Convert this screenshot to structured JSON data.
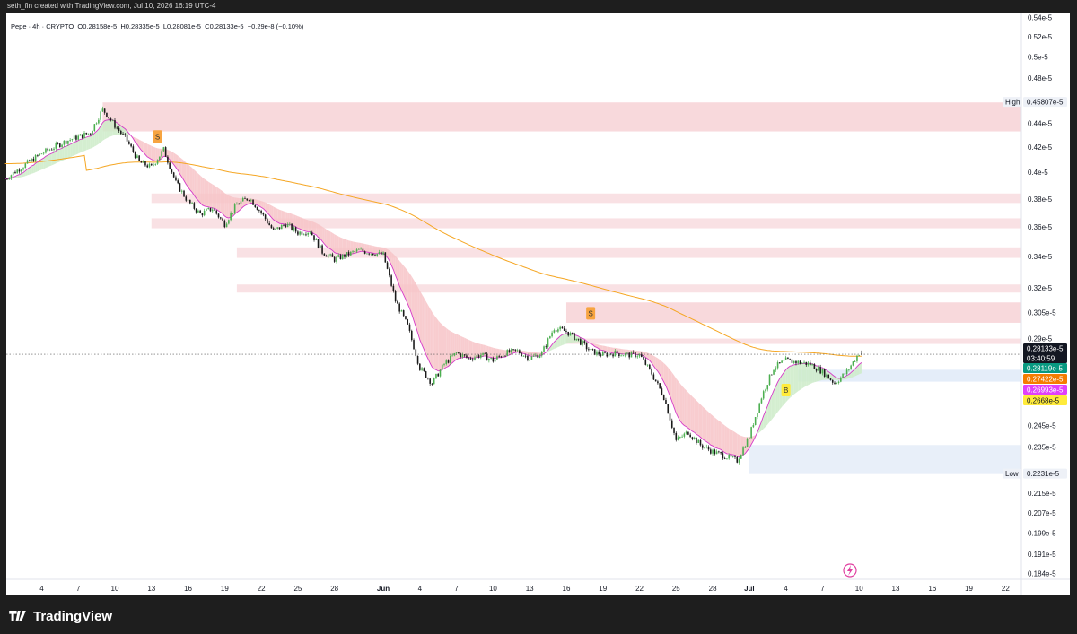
{
  "header": {
    "credit": "seth_fin created with TradingView.com, Jul 10, 2026 16:19 UTC-4"
  },
  "legend": {
    "symbol": "Pepe · 4h · CRYPTO",
    "open_label": "O",
    "open": "0.28158e-5",
    "high_label": "H",
    "high": "0.28335e-5",
    "low_label": "L",
    "low": "0.28081e-5",
    "close_label": "C",
    "close": "0.28133e-5",
    "change": "−0.29e-8 (−0.10%)"
  },
  "footer": {
    "brand": "TradingView",
    "logo_icon": "tradingview-logo-icon"
  },
  "chart_data": {
    "type": "candlestick",
    "scale": "log",
    "ylim": [
      0.182,
      0.545
    ],
    "y_ticks": [
      {
        "v": 0.54,
        "label": "0.54e-5"
      },
      {
        "v": 0.52,
        "label": "0.52e-5"
      },
      {
        "v": 0.5,
        "label": "0.5e-5"
      },
      {
        "v": 0.48,
        "label": "0.48e-5"
      },
      {
        "v": 0.44,
        "label": "0.44e-5"
      },
      {
        "v": 0.42,
        "label": "0.42e-5"
      },
      {
        "v": 0.4,
        "label": "0.4e-5"
      },
      {
        "v": 0.38,
        "label": "0.38e-5"
      },
      {
        "v": 0.36,
        "label": "0.36e-5"
      },
      {
        "v": 0.34,
        "label": "0.34e-5"
      },
      {
        "v": 0.32,
        "label": "0.32e-5"
      },
      {
        "v": 0.305,
        "label": "0.305e-5"
      },
      {
        "v": 0.29,
        "label": "0.29e-5"
      },
      {
        "v": 0.245,
        "label": "0.245e-5"
      },
      {
        "v": 0.235,
        "label": "0.235e-5"
      },
      {
        "v": 0.215,
        "label": "0.215e-5"
      },
      {
        "v": 0.207,
        "label": "0.207e-5"
      },
      {
        "v": 0.199,
        "label": "0.199e-5"
      },
      {
        "v": 0.191,
        "label": "0.191e-5"
      },
      {
        "v": 0.184,
        "label": "0.184e-5"
      }
    ],
    "x_ticks": [
      {
        "d": 4,
        "label": "4"
      },
      {
        "d": 7,
        "label": "7"
      },
      {
        "d": 10,
        "label": "10"
      },
      {
        "d": 13,
        "label": "13"
      },
      {
        "d": 16,
        "label": "16"
      },
      {
        "d": 19,
        "label": "19"
      },
      {
        "d": 22,
        "label": "22"
      },
      {
        "d": 25,
        "label": "25"
      },
      {
        "d": 28,
        "label": "28"
      },
      {
        "d": 32,
        "label": "Jun"
      },
      {
        "d": 35,
        "label": "4"
      },
      {
        "d": 38,
        "label": "7"
      },
      {
        "d": 41,
        "label": "10"
      },
      {
        "d": 44,
        "label": "13"
      },
      {
        "d": 47,
        "label": "16"
      },
      {
        "d": 50,
        "label": "19"
      },
      {
        "d": 53,
        "label": "22"
      },
      {
        "d": 56,
        "label": "25"
      },
      {
        "d": 59,
        "label": "28"
      },
      {
        "d": 62,
        "label": "Jul"
      },
      {
        "d": 65,
        "label": "4"
      },
      {
        "d": 68,
        "label": "7"
      },
      {
        "d": 71,
        "label": "10"
      },
      {
        "d": 74,
        "label": "13"
      },
      {
        "d": 77,
        "label": "16"
      },
      {
        "d": 80,
        "label": "19"
      },
      {
        "d": 83,
        "label": "22"
      }
    ],
    "price_path": [
      [
        1,
        0.395
      ],
      [
        4,
        0.415
      ],
      [
        6,
        0.425
      ],
      [
        8,
        0.432
      ],
      [
        9,
        0.452
      ],
      [
        10,
        0.438
      ],
      [
        11,
        0.425
      ],
      [
        12,
        0.408
      ],
      [
        13,
        0.404
      ],
      [
        14,
        0.418
      ],
      [
        15,
        0.392
      ],
      [
        16,
        0.378
      ],
      [
        17,
        0.369
      ],
      [
        18,
        0.373
      ],
      [
        19,
        0.362
      ],
      [
        20,
        0.376
      ],
      [
        21,
        0.381
      ],
      [
        22,
        0.37
      ],
      [
        23,
        0.357
      ],
      [
        24,
        0.362
      ],
      [
        25,
        0.356
      ],
      [
        26,
        0.357
      ],
      [
        27,
        0.343
      ],
      [
        28,
        0.338
      ],
      [
        30,
        0.344
      ],
      [
        32,
        0.341
      ],
      [
        33,
        0.312
      ],
      [
        34,
        0.297
      ],
      [
        35,
        0.274
      ],
      [
        36,
        0.266
      ],
      [
        37,
        0.276
      ],
      [
        38,
        0.282
      ],
      [
        39,
        0.279
      ],
      [
        40,
        0.281
      ],
      [
        41,
        0.278
      ],
      [
        42,
        0.282
      ],
      [
        43,
        0.283
      ],
      [
        44,
        0.279
      ],
      [
        45,
        0.282
      ],
      [
        46,
        0.296
      ],
      [
        47,
        0.294
      ],
      [
        48,
        0.289
      ],
      [
        49,
        0.283
      ],
      [
        50,
        0.281
      ],
      [
        51,
        0.282
      ],
      [
        52,
        0.281
      ],
      [
        53,
        0.281
      ],
      [
        54,
        0.271
      ],
      [
        55,
        0.259
      ],
      [
        56,
        0.238
      ],
      [
        57,
        0.242
      ],
      [
        58,
        0.236
      ],
      [
        59,
        0.233
      ],
      [
        60,
        0.231
      ],
      [
        61,
        0.229
      ],
      [
        62,
        0.24
      ],
      [
        63,
        0.259
      ],
      [
        64,
        0.274
      ],
      [
        65,
        0.278
      ],
      [
        66,
        0.277
      ],
      [
        67,
        0.276
      ],
      [
        68,
        0.272
      ],
      [
        69,
        0.266
      ],
      [
        70,
        0.272
      ],
      [
        71,
        0.282
      ]
    ],
    "last_bar": {
      "open": 0.28158,
      "high": 0.28335,
      "low": 0.28081,
      "close": 0.28133
    },
    "zones": [
      {
        "y1": 0.433,
        "y2": 0.458,
        "x1": 9,
        "color": "#f6cfd3"
      },
      {
        "y1": 0.384,
        "y2": 0.377,
        "x1": 13,
        "color": "#f8dadd"
      },
      {
        "y1": 0.366,
        "y2": 0.359,
        "x1": 13,
        "color": "#f8dadd"
      },
      {
        "y1": 0.346,
        "y2": 0.339,
        "x1": 20,
        "color": "#f8dadd"
      },
      {
        "y1": 0.322,
        "y2": 0.317,
        "x1": 20,
        "color": "#f8dadd"
      },
      {
        "y1": 0.299,
        "y2": 0.311,
        "x1": 47,
        "color": "#f6cfd3"
      },
      {
        "y1": 0.287,
        "y2": 0.29,
        "x1": 47,
        "color": "#f8dadd"
      },
      {
        "y1": 0.2668,
        "y2": 0.273,
        "x1": 66,
        "color": "#dde8f7"
      },
      {
        "y1": 0.2231,
        "y2": 0.236,
        "x1": 62,
        "color": "#e2ebf8"
      }
    ],
    "signals": [
      {
        "label": "S",
        "d": 13.5,
        "v": 0.428,
        "dir": "sell"
      },
      {
        "label": "S",
        "d": 49,
        "v": 0.304,
        "dir": "sell"
      },
      {
        "label": "B",
        "d": 65,
        "v": 0.262,
        "dir": "buy"
      }
    ],
    "price_labels": [
      {
        "v": 0.45807,
        "text": "0.45807e-5",
        "tag": "High",
        "bg": "#eef1f7",
        "fg": "#131722"
      },
      {
        "v": 0.28133,
        "text": "0.28133e-5",
        "time": "03:40:59",
        "bg": "#131722",
        "fg": "#ffffff"
      },
      {
        "v": 0.28119,
        "text": "0.28119e-5",
        "bg": "#089981",
        "fg": "#ffffff"
      },
      {
        "v": 0.27422,
        "text": "0.27422e-5",
        "bg": "#f57c00",
        "fg": "#ffffff"
      },
      {
        "v": 0.26993,
        "text": "0.26993e-5",
        "bg": "#e040fb",
        "fg": "#ffffff"
      },
      {
        "v": 0.2668,
        "text": "0.2668e-5",
        "bg": "#ffeb3b",
        "fg": "#131722"
      },
      {
        "v": 0.2231,
        "text": "0.2231e-5",
        "tag": "Low",
        "bg": "#eef1f7",
        "fg": "#131722"
      }
    ],
    "colors": {
      "up": "#4caf50",
      "down": "#1a1a1a",
      "ema_slow": "#f5a623",
      "ema_fast": "#d63ac8",
      "ribbon_bear": "#f7c3c7",
      "ribbon_bull": "#cdebc8",
      "current_line": "#555555"
    }
  }
}
